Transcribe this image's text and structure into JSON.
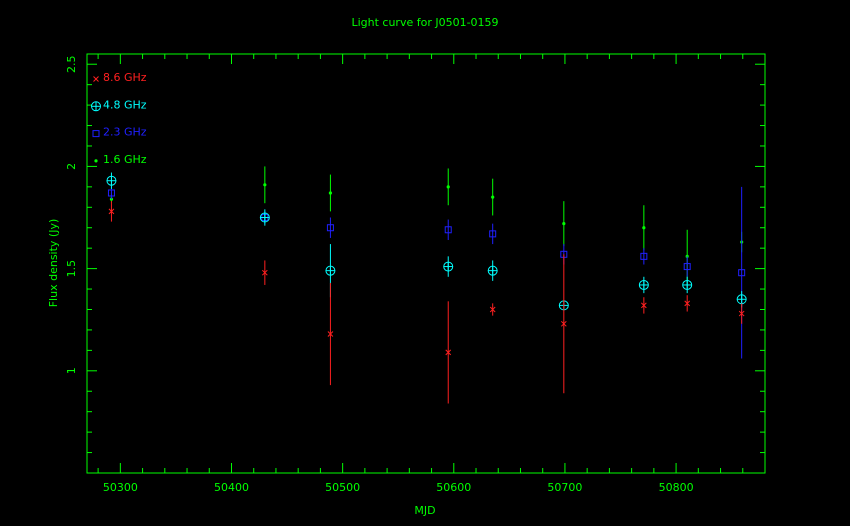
{
  "chart_data": {
    "type": "scatter",
    "title": "Light curve for J0501-0159",
    "xlabel": "MJD",
    "ylabel": "Flux density (Jy)",
    "xlim": [
      50270,
      50880
    ],
    "ylim": [
      0.5,
      2.55
    ],
    "xticks": [
      50300,
      50400,
      50500,
      50600,
      50700,
      50800
    ],
    "yticks": [
      1,
      1.5,
      2,
      2.5
    ],
    "xtick_labels": [
      "50300",
      "50400",
      "50500",
      "50600",
      "50700",
      "50800"
    ],
    "ytick_labels": [
      "1",
      "1.5",
      "2",
      "2.5"
    ],
    "axis_color": "#00ff00",
    "legend_position": "top-left",
    "series": [
      {
        "name": "8.6 GHz",
        "color": "#ff2020",
        "marker": "x",
        "points": [
          {
            "x": 50292,
            "y": 1.78,
            "err": 0.05
          },
          {
            "x": 50430,
            "y": 1.48,
            "err": 0.06
          },
          {
            "x": 50489,
            "y": 1.18,
            "err": 0.25
          },
          {
            "x": 50595,
            "y": 1.09,
            "err": 0.25
          },
          {
            "x": 50635,
            "y": 1.3,
            "err": 0.03
          },
          {
            "x": 50699,
            "y": 1.23,
            "err": 0.34
          },
          {
            "x": 50771,
            "y": 1.32,
            "err": 0.04
          },
          {
            "x": 50810,
            "y": 1.33,
            "err": 0.04
          },
          {
            "x": 50859,
            "y": 1.28,
            "err": 0.05
          }
        ]
      },
      {
        "name": "4.8 GHz",
        "color": "#00ffff",
        "marker": "circle-plus",
        "points": [
          {
            "x": 50292,
            "y": 1.93,
            "err": 0.04
          },
          {
            "x": 50430,
            "y": 1.75,
            "err": 0.04
          },
          {
            "x": 50489,
            "y": 1.49,
            "err": 0.13
          },
          {
            "x": 50595,
            "y": 1.51,
            "err": 0.05
          },
          {
            "x": 50635,
            "y": 1.49,
            "err": 0.05
          },
          {
            "x": 50699,
            "y": 1.32,
            "err": 0.0
          },
          {
            "x": 50771,
            "y": 1.42,
            "err": 0.04
          },
          {
            "x": 50810,
            "y": 1.42,
            "err": 0.04
          },
          {
            "x": 50859,
            "y": 1.35,
            "err": 0.04
          }
        ]
      },
      {
        "name": "2.3 GHz",
        "color": "#2020ff",
        "marker": "square",
        "points": [
          {
            "x": 50292,
            "y": 1.87,
            "err": 0.03
          },
          {
            "x": 50430,
            "y": 1.75,
            "err": 0.03
          },
          {
            "x": 50489,
            "y": 1.7,
            "err": 0.05
          },
          {
            "x": 50595,
            "y": 1.69,
            "err": 0.05
          },
          {
            "x": 50635,
            "y": 1.67,
            "err": 0.05
          },
          {
            "x": 50699,
            "y": 1.57,
            "err": 0.05
          },
          {
            "x": 50771,
            "y": 1.56,
            "err": 0.04
          },
          {
            "x": 50810,
            "y": 1.51,
            "err": 0.05
          },
          {
            "x": 50859,
            "y": 1.48,
            "err": 0.42
          }
        ]
      },
      {
        "name": "1.6 GHz",
        "color": "#00ff00",
        "marker": "dot",
        "points": [
          {
            "x": 50292,
            "y": 1.84,
            "err": 0.02
          },
          {
            "x": 50430,
            "y": 1.91,
            "err": 0.09
          },
          {
            "x": 50489,
            "y": 1.87,
            "err": 0.09
          },
          {
            "x": 50595,
            "y": 1.9,
            "err": 0.09
          },
          {
            "x": 50635,
            "y": 1.85,
            "err": 0.09
          },
          {
            "x": 50699,
            "y": 1.72,
            "err": 0.11
          },
          {
            "x": 50771,
            "y": 1.7,
            "err": 0.11
          },
          {
            "x": 50810,
            "y": 1.56,
            "err": 0.13
          },
          {
            "x": 50859,
            "y": 1.63,
            "err": 0.05
          }
        ]
      }
    ]
  }
}
